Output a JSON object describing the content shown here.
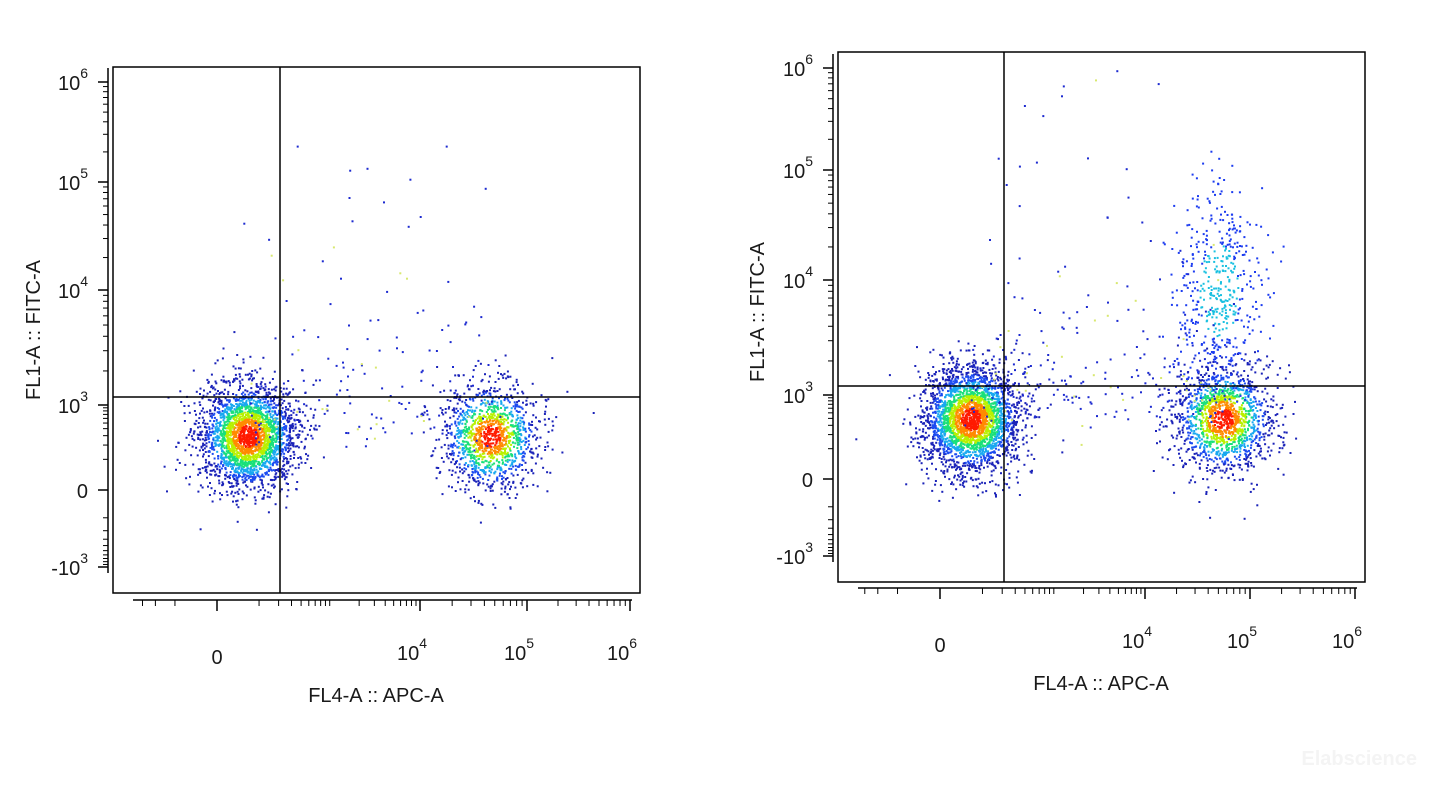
{
  "watermark": "Elabscience",
  "chart_data": [
    {
      "type": "scatter",
      "xlabel": "FL4-A :: APC-A",
      "ylabel": "FL1-A :: FITC-A",
      "x_ticks": [
        {
          "base": "0",
          "exp": "",
          "value": 0
        },
        {
          "base": "10",
          "exp": "4",
          "value": 10000
        },
        {
          "base": "10",
          "exp": "5",
          "value": 100000
        },
        {
          "base": "10",
          "exp": "6",
          "value": 1000000
        }
      ],
      "y_ticks": [
        {
          "base": "-10",
          "exp": "3",
          "value": -1000
        },
        {
          "base": "0",
          "exp": "",
          "value": 0
        },
        {
          "base": "10",
          "exp": "3",
          "value": 1000
        },
        {
          "base": "10",
          "exp": "4",
          "value": 10000
        },
        {
          "base": "10",
          "exp": "5",
          "value": 100000
        },
        {
          "base": "10",
          "exp": "6",
          "value": 1000000
        }
      ],
      "gate": {
        "x": 1200,
        "y": 1100
      },
      "populations": [
        {
          "x": 60,
          "y": 300,
          "n": 2600
        },
        {
          "x": 45000,
          "y": 300,
          "n": 1300
        }
      ],
      "sparse_events": 180
    },
    {
      "type": "scatter",
      "xlabel": "FL4-A :: APC-A",
      "ylabel": "FL1-A :: FITC-A",
      "x_ticks": [
        {
          "base": "0",
          "exp": "",
          "value": 0
        },
        {
          "base": "10",
          "exp": "4",
          "value": 10000
        },
        {
          "base": "10",
          "exp": "5",
          "value": 100000
        },
        {
          "base": "10",
          "exp": "6",
          "value": 1000000
        }
      ],
      "y_ticks": [
        {
          "base": "-10",
          "exp": "3",
          "value": -1000
        },
        {
          "base": "0",
          "exp": "",
          "value": 0
        },
        {
          "base": "10",
          "exp": "3",
          "value": 1000
        },
        {
          "base": "10",
          "exp": "4",
          "value": 10000
        },
        {
          "base": "10",
          "exp": "5",
          "value": 100000
        },
        {
          "base": "10",
          "exp": "6",
          "value": 1000000
        }
      ],
      "gate": {
        "x": 1200,
        "y": 1100
      },
      "populations": [
        {
          "x": 60,
          "y": 400,
          "n": 2800
        },
        {
          "x": 55000,
          "y": 400,
          "n": 1500
        },
        {
          "x": 50000,
          "y": 8000,
          "n": 500
        }
      ],
      "sparse_events": 260
    }
  ]
}
